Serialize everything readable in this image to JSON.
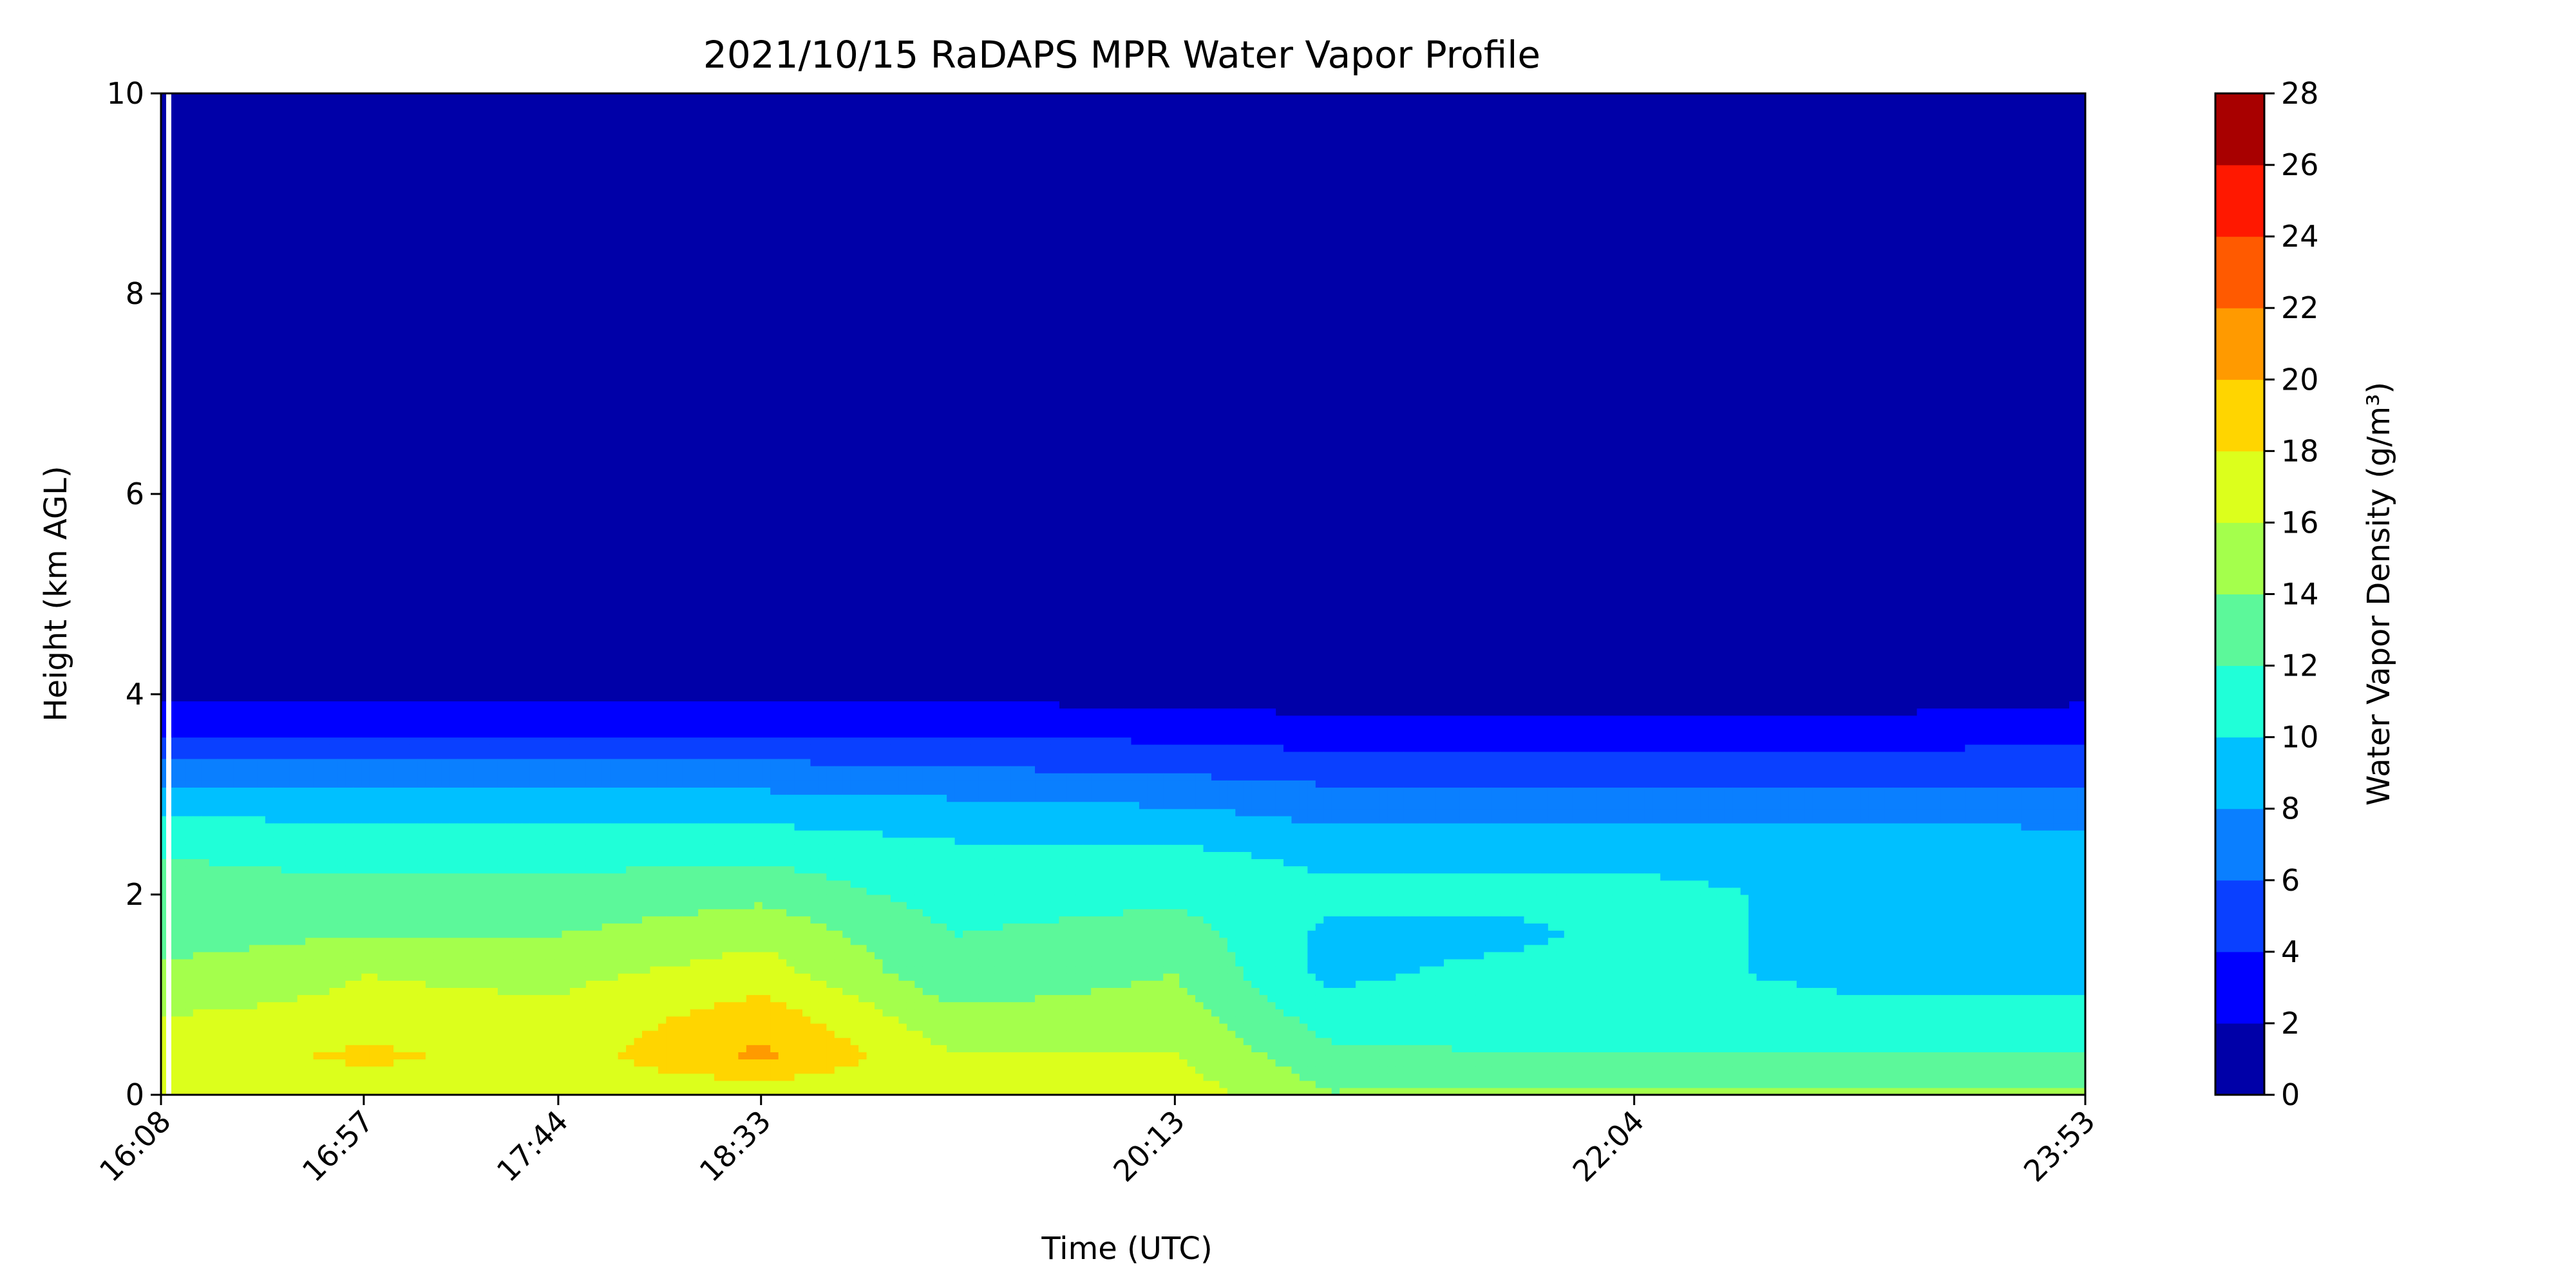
{
  "chart_data": {
    "type": "heatmap",
    "subtype": "filled-contour",
    "title": "2021/10/15 RaDAPS MPR Water Vapor Profile",
    "xlabel": "Time (UTC)",
    "ylabel": "Height (km AGL)",
    "colorbar_label": "Water Vapor Density (g/m³)",
    "x_ticks": [
      {
        "label": "16:08",
        "minutes": 968
      },
      {
        "label": "16:57",
        "minutes": 1017
      },
      {
        "label": "17:44",
        "minutes": 1064
      },
      {
        "label": "18:33",
        "minutes": 1113
      },
      {
        "label": "20:13",
        "minutes": 1213
      },
      {
        "label": "22:04",
        "minutes": 1324
      },
      {
        "label": "23:53",
        "minutes": 1433
      }
    ],
    "xlim_minutes": [
      968,
      1433
    ],
    "ylim": [
      0,
      10
    ],
    "y_ticks": [
      "0",
      "2",
      "4",
      "6",
      "8",
      "10"
    ],
    "colorbar_ticks": [
      "0",
      "2",
      "4",
      "6",
      "8",
      "10",
      "12",
      "14",
      "16",
      "18",
      "20",
      "22",
      "24",
      "26",
      "28"
    ],
    "levels": [
      0,
      2,
      4,
      6,
      8,
      10,
      12,
      14,
      16,
      18,
      20,
      22,
      24,
      26,
      28
    ],
    "level_colors": [
      "#0000a8",
      "#0000ff",
      "#0a40ff",
      "#0a7fff",
      "#00c0ff",
      "#20ffd8",
      "#5cf89a",
      "#a4ff4c",
      "#dcff1c",
      "#ffd500",
      "#ff9a00",
      "#ff5a00",
      "#ff1800",
      "#a80000"
    ],
    "profile": {
      "description_of_values": "estimated water vapor density (g/m3) at selected heights (km) per time",
      "heights_km": [
        0.05,
        0.4,
        0.8,
        1.2,
        1.6,
        2.0,
        2.4,
        2.8,
        3.2,
        3.6,
        4.0,
        5.0,
        10.0
      ],
      "columns": [
        {
          "minutes": 968,
          "values": [
            17,
            16.5,
            16,
            14.5,
            13,
            12.5,
            12,
            10,
            7,
            4,
            1.5,
            0.8,
            0.1
          ]
        },
        {
          "minutes": 1017,
          "values": [
            17,
            18.5,
            16.5,
            16,
            14,
            12.5,
            11.5,
            9.5,
            7,
            4,
            1.5,
            0.8,
            0.1
          ]
        },
        {
          "minutes": 1064,
          "values": [
            17,
            17,
            16.5,
            15.5,
            14,
            12.5,
            11.5,
            9.5,
            7,
            4,
            1.5,
            0.8,
            0.1
          ]
        },
        {
          "minutes": 1113,
          "values": [
            17,
            20.5,
            19,
            17,
            15.5,
            13.5,
            11.5,
            9.5,
            7,
            4,
            1.5,
            0.8,
            0.1
          ]
        },
        {
          "minutes": 1160,
          "values": [
            17,
            16,
            14.5,
            12.5,
            12,
            11,
            10.5,
            9,
            6.5,
            4,
            1.5,
            0.8,
            0.1
          ]
        },
        {
          "minutes": 1213,
          "values": [
            17,
            16,
            15,
            14,
            13,
            11.5,
            10.5,
            8.5,
            6,
            3.5,
            1.2,
            0.8,
            0.1
          ]
        },
        {
          "minutes": 1250,
          "values": [
            14,
            12.5,
            11,
            9.5,
            9.5,
            10.5,
            9.5,
            7.5,
            5.5,
            3,
            1,
            0.8,
            0.1
          ]
        },
        {
          "minutes": 1290,
          "values": [
            14,
            12,
            11.5,
            10.5,
            9.5,
            10.5,
            9.5,
            7.5,
            5.5,
            3,
            1,
            0.8,
            0.1
          ]
        },
        {
          "minutes": 1324,
          "values": [
            14,
            12,
            11,
            10.5,
            10.5,
            10.5,
            9.5,
            7.5,
            5,
            3,
            0.8,
            0.6,
            0.1
          ]
        },
        {
          "minutes": 1380,
          "values": [
            14,
            12,
            10.5,
            9.5,
            9.5,
            9.5,
            9.5,
            7.5,
            5.5,
            3,
            1,
            0.8,
            0.1
          ]
        },
        {
          "minutes": 1433,
          "values": [
            14,
            12,
            10.5,
            9.5,
            9.5,
            9.5,
            9,
            7.5,
            5.5,
            3.5,
            1.5,
            0.8,
            0.1
          ]
        }
      ]
    }
  }
}
